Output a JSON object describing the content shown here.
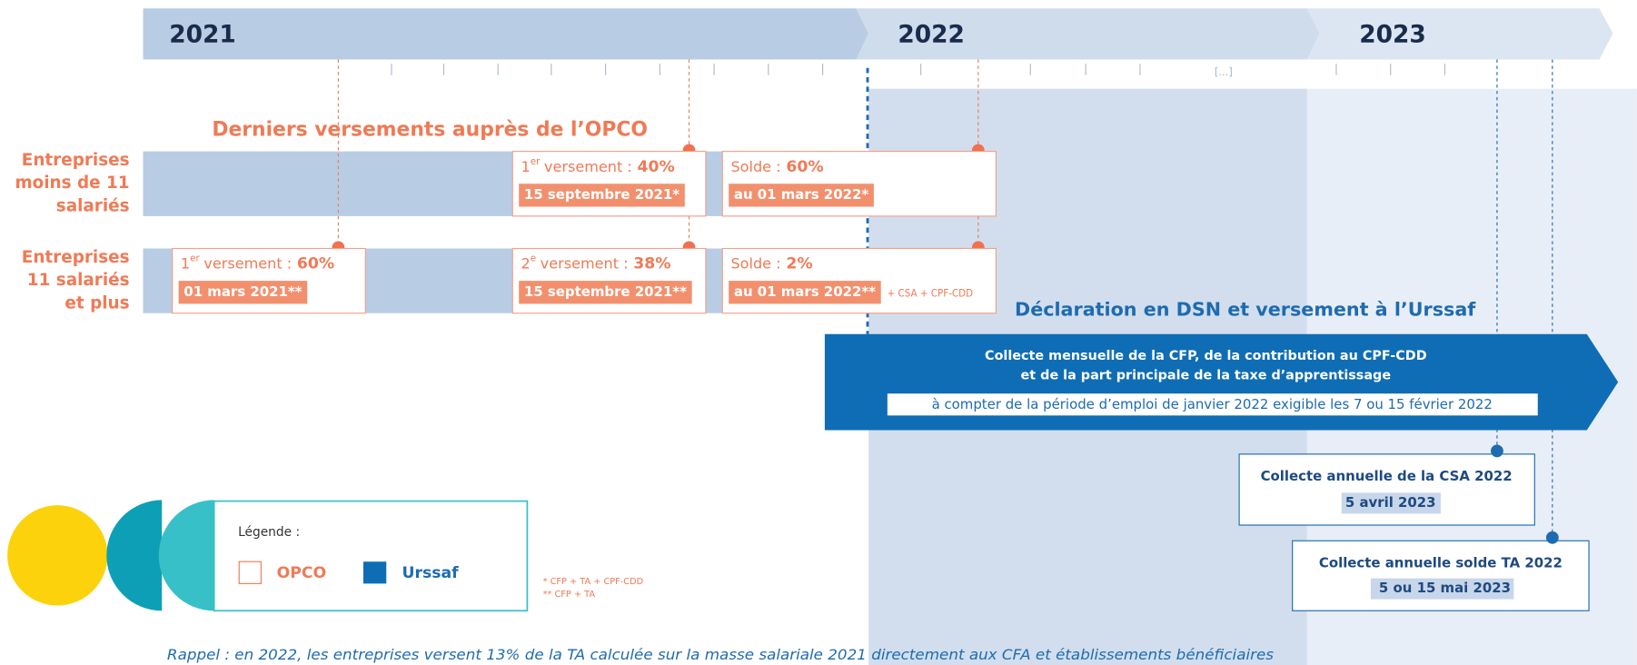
{
  "timeline": {
    "years": [
      "2021",
      "2022",
      "2023"
    ],
    "ellipsis": "[...]"
  },
  "opco_title": "Derniers versements auprès de l’OPCO",
  "rows": [
    {
      "label": [
        "Entreprises",
        "moins de 11",
        "salariés"
      ],
      "payments": [
        {
          "prefix": "1",
          "sup": "er",
          "label": "versement :",
          "amount": "40%",
          "date": "15 septembre 2021*"
        },
        {
          "label": "Solde :",
          "amount": "60%",
          "date": "au 01 mars 2022*"
        }
      ]
    },
    {
      "label": [
        "Entreprises",
        "11 salariés",
        "et plus"
      ],
      "payments": [
        {
          "prefix": "1",
          "sup": "er",
          "label": "versement :",
          "amount": "60%",
          "date": "01 mars 2021**"
        },
        {
          "prefix": "2",
          "sup": "e",
          "label": "versement :",
          "amount": "38%",
          "date": "15 septembre 2021**"
        },
        {
          "label": "Solde :",
          "amount": "2%",
          "date": "au 01 mars 2022**",
          "extra": "+ CSA + CPF-CDD"
        }
      ]
    }
  ],
  "urssaf": {
    "title": "Déclaration en DSN et versement à l’Urssaf",
    "lines": [
      "Collecte mensuelle de la CFP, de la contribution au CPF-CDD",
      "et de la part principale de la taxe d’apprentissage"
    ],
    "note": "à compter de la période d’emploi de janvier 2022 exigible les 7 ou 15 février 2022"
  },
  "annual": [
    {
      "title": "Collecte annuelle de la CSA 2022",
      "date": "5 avril 2023"
    },
    {
      "title": "Collecte annuelle solde TA 2022",
      "date": "5 ou 15 mai 2023"
    }
  ],
  "legend": {
    "title": "Légende :",
    "items": [
      "OPCO",
      "Urssaf"
    ]
  },
  "footnotes": [
    "* CFP + TA + CPF-CDD",
    "** CFP + TA"
  ],
  "reminder": "Rappel : en 2022, les entreprises versent 13% de la TA calculée sur la masse salariale 2021 directement aux CFA et établissements bénéficiaires"
}
